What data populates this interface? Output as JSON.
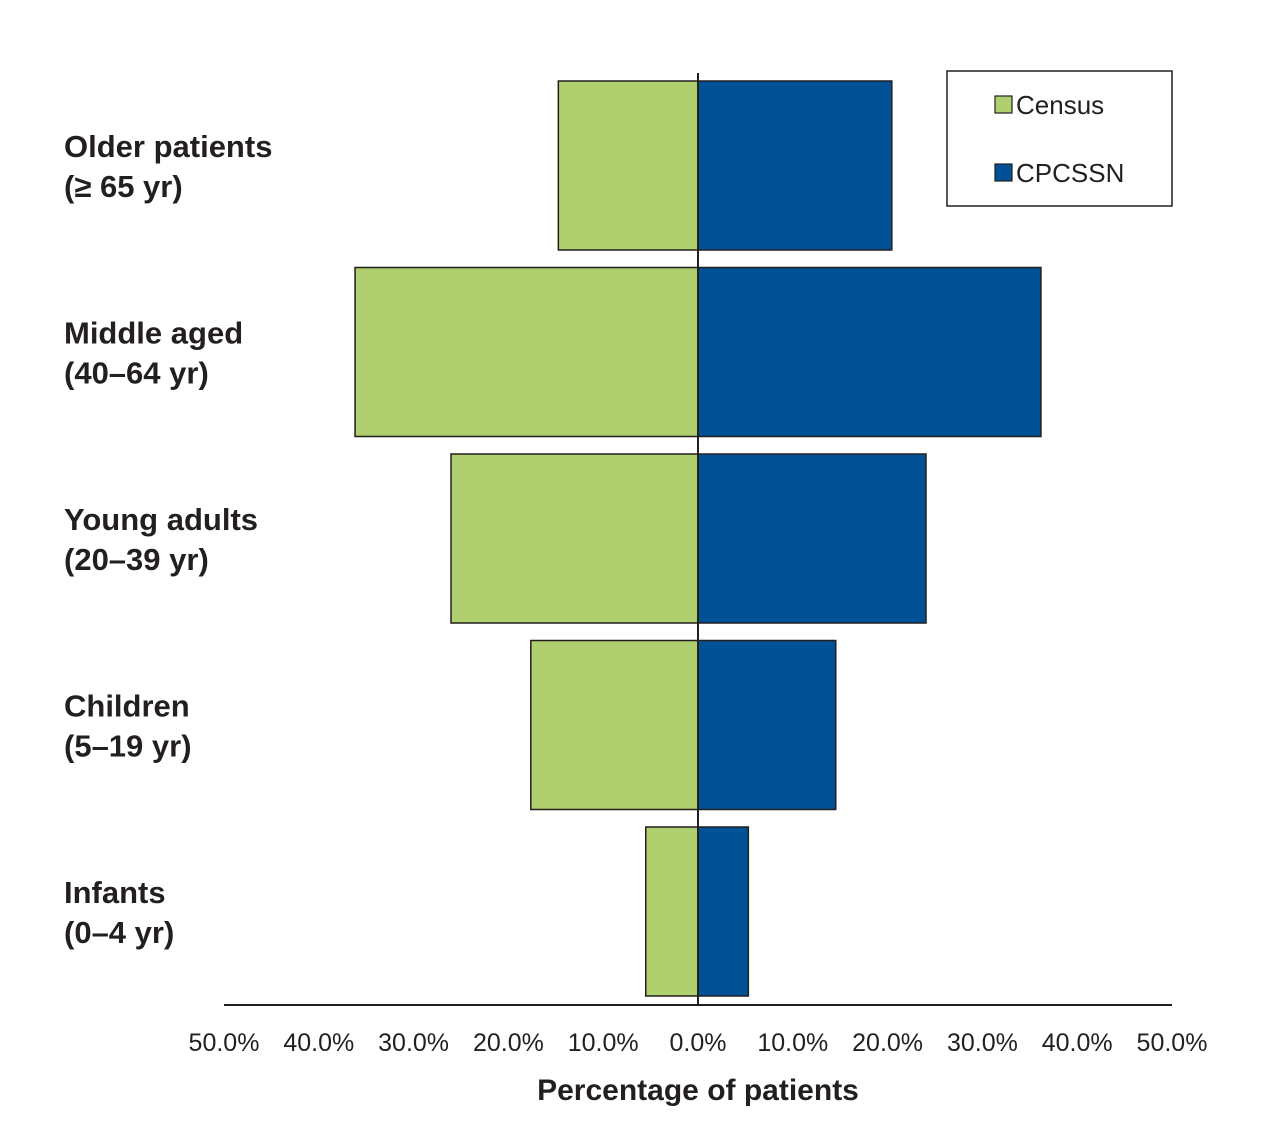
{
  "chart_data": {
    "type": "bar",
    "orientation": "horizontal-butterfly",
    "xlabel": "Percentage of patients",
    "categories": [
      [
        "Older patients",
        "(≥ 65 yr)"
      ],
      [
        "Middle aged",
        "(40–64 yr)"
      ],
      [
        "Young adults",
        "(20–39 yr)"
      ],
      [
        "Children",
        "(5–19 yr)"
      ],
      [
        "Infants",
        "(0–4 yr)"
      ]
    ],
    "series": [
      {
        "name": "Census",
        "side": "left",
        "color": "#b0cf6e",
        "values": [
          14.7,
          36.1,
          26.0,
          17.6,
          5.5
        ]
      },
      {
        "name": "CPCSSN",
        "side": "right",
        "color": "#005195",
        "values": [
          20.4,
          36.1,
          24.0,
          14.5,
          5.3
        ]
      }
    ],
    "ticks": [
      "50.0%",
      "40.0%",
      "30.0%",
      "20.0%",
      "10.0%",
      "0.0%",
      "10.0%",
      "20.0%",
      "30.0%",
      "40.0%",
      "50.0%"
    ],
    "xlim": [
      -50,
      50
    ],
    "grid": false,
    "legend": "top-right"
  }
}
